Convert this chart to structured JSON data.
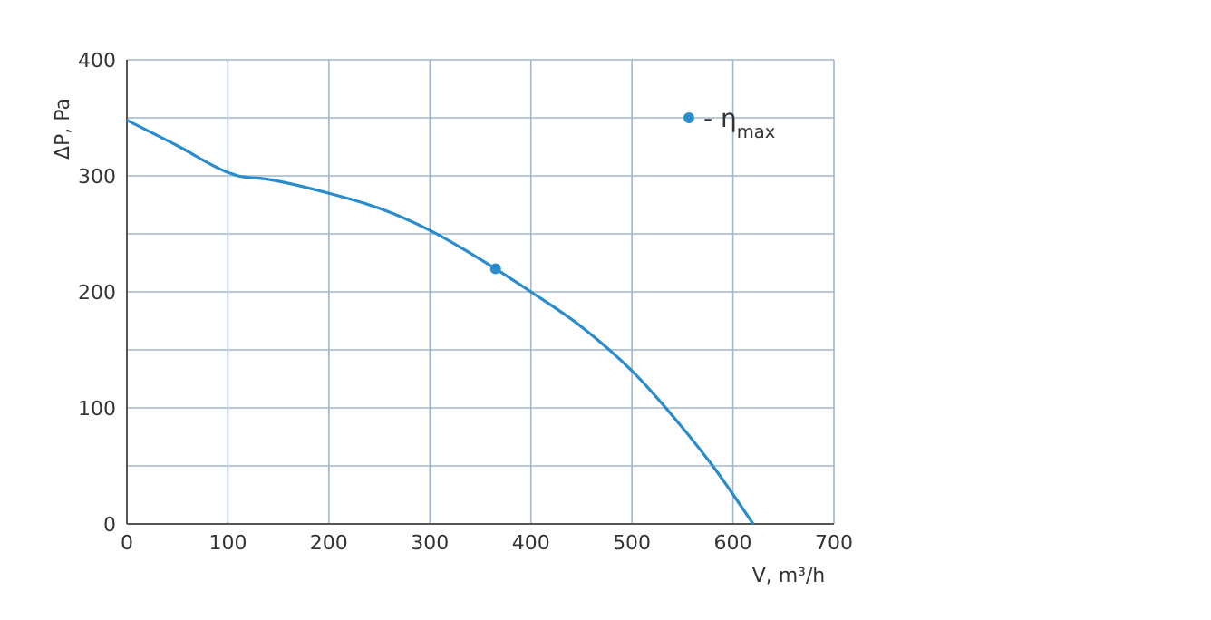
{
  "chart_data": {
    "type": "line",
    "xlabel": "V, m³/h",
    "ylabel": "ΔP, Pa",
    "xlim": [
      0,
      700
    ],
    "ylim": [
      0,
      400
    ],
    "xticks": [
      0,
      100,
      200,
      300,
      400,
      500,
      600,
      700
    ],
    "yticks": [
      0,
      {
        "value": 50,
        "label": null
      },
      100,
      {
        "value": 150,
        "label": null
      },
      200,
      {
        "value": 250,
        "label": null
      },
      300,
      {
        "value": 350,
        "label": null
      },
      400
    ],
    "grid": true,
    "legend": "top right",
    "series": [
      {
        "color": "#2a8ccc",
        "x": [
          0,
          50,
          100,
          110,
          140,
          200,
          250,
          300,
          350,
          400,
          450,
          500,
          550,
          580,
          620
        ],
        "values": [
          348,
          326,
          303,
          300,
          297,
          285,
          272,
          253,
          228,
          200,
          170,
          132,
          83,
          50,
          0
        ]
      },
      {
        "type": "scatter",
        "name": "- η$_{max}$",
        "color": "#2a8ccc",
        "marker": "circle",
        "x": [
          365
        ],
        "values": [
          220
        ]
      }
    ]
  }
}
